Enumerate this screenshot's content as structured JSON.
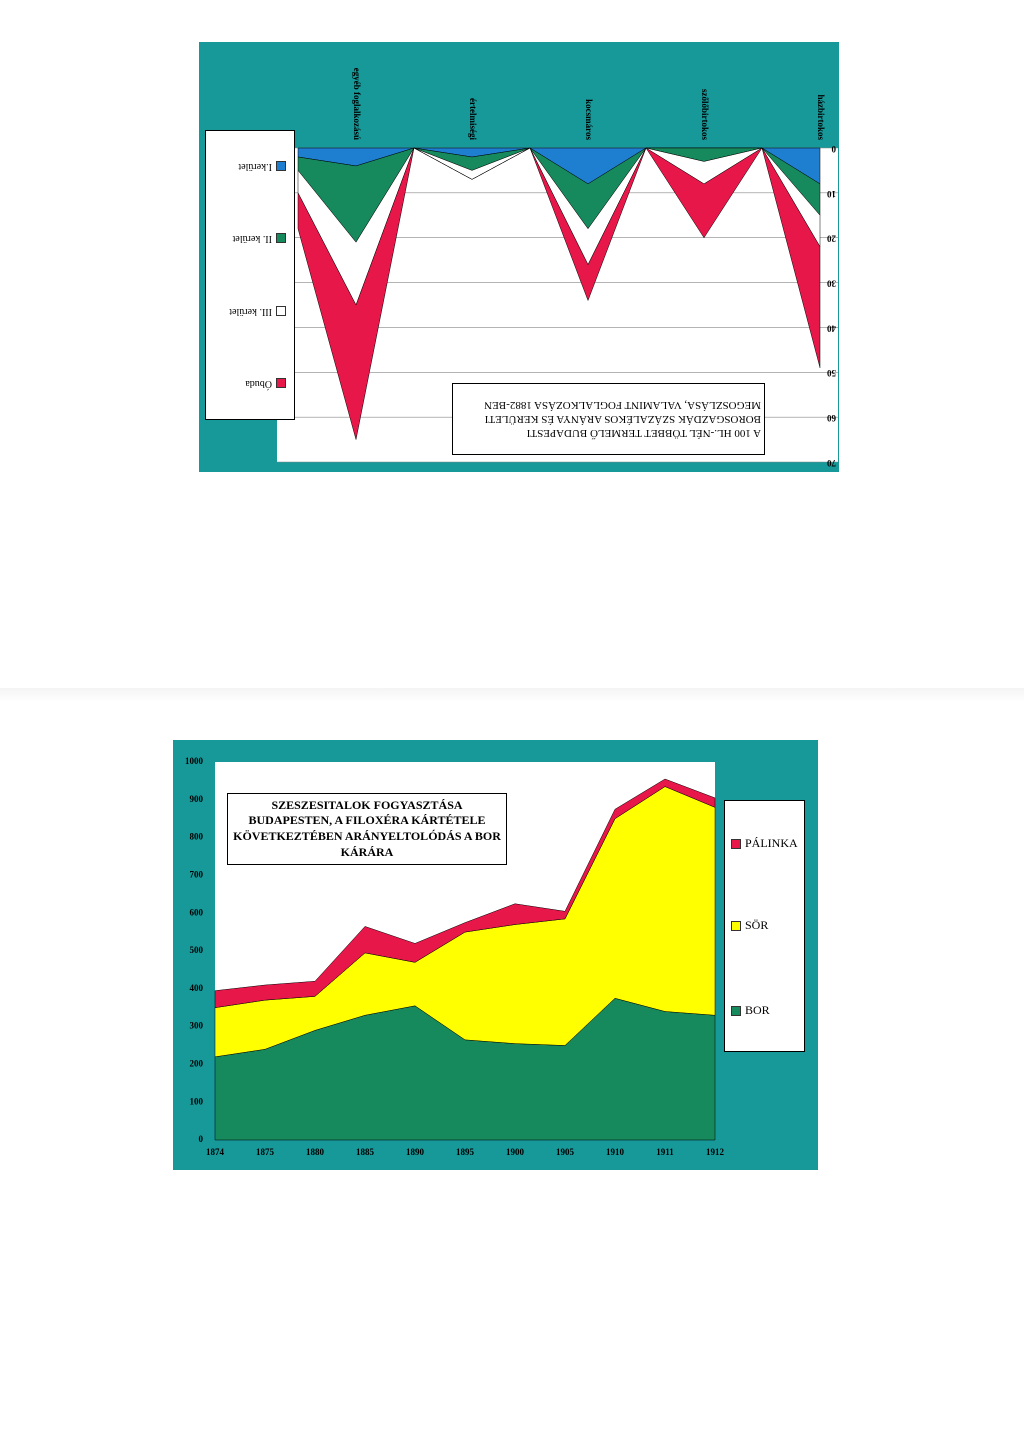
{
  "chart_data": [
    {
      "type": "stacked_area",
      "title": "A 100 HL.-NÉL TÖBBET TERMELŐ BUDAPESTI BOROSGAZDÁK SZÁZALÉKOS ARÁNYA ÉS KERÜLETI MEGOSZLÁSA, VALAMINT FOGLALKOZÁSA 1882-BEN",
      "categories": [
        "házbirtokos",
        null,
        "szőlőbirtokos",
        null,
        "kocsmáros",
        null,
        "értelmiségi",
        null,
        "egyéb foglalkozású",
        null
      ],
      "series": [
        {
          "name": "I.kerület",
          "color": "#1e7fd0",
          "values": [
            8,
            0,
            0,
            0,
            8,
            0,
            2,
            0,
            4,
            2
          ]
        },
        {
          "name": "II. kerület",
          "color": "#168a5c",
          "values": [
            7,
            0,
            3,
            0,
            10,
            0,
            3,
            0,
            17,
            3
          ]
        },
        {
          "name": "III. kerület",
          "color": "#ffffff",
          "values": [
            7,
            0,
            5,
            0,
            8,
            0,
            2,
            0,
            14,
            5
          ]
        },
        {
          "name": "Óbuda",
          "color": "#e8174a",
          "values": [
            27,
            0,
            12,
            0,
            8,
            0,
            0,
            0,
            30,
            8
          ]
        }
      ],
      "ylim": [
        0,
        70
      ],
      "yticks": [
        0,
        10,
        20,
        30,
        40,
        50,
        60,
        70
      ],
      "grid": true,
      "rotated": true
    },
    {
      "type": "stacked_area",
      "title": "SZESZESITALOK FOGYASZTÁSA BUDAPESTEN, A FILOXÉRA KÁRTÉTELE KÖVETKEZTÉBEN ARÁNYELTOLÓDÁS A BOR KÁRÁRA",
      "categories": [
        "1874",
        "1875",
        "1880",
        "1885",
        "1890",
        "1895",
        "1900",
        "1905",
        "1910",
        "1911",
        "1912"
      ],
      "series": [
        {
          "name": "BOR",
          "color": "#168a5c",
          "values": [
            220,
            240,
            290,
            330,
            355,
            265,
            255,
            250,
            375,
            340,
            330
          ]
        },
        {
          "name": "SÖR",
          "color": "#ffff00",
          "values": [
            130,
            130,
            90,
            165,
            115,
            285,
            315,
            335,
            475,
            595,
            550
          ]
        },
        {
          "name": "PÁLINKA",
          "color": "#e8174a",
          "values": [
            45,
            40,
            40,
            70,
            50,
            25,
            55,
            20,
            25,
            20,
            25
          ]
        }
      ],
      "ylim": [
        0,
        1000
      ],
      "yticks": [
        0,
        100,
        200,
        300,
        400,
        500,
        600,
        700,
        800,
        900,
        1000
      ],
      "grid": false,
      "rotated": false
    }
  ]
}
